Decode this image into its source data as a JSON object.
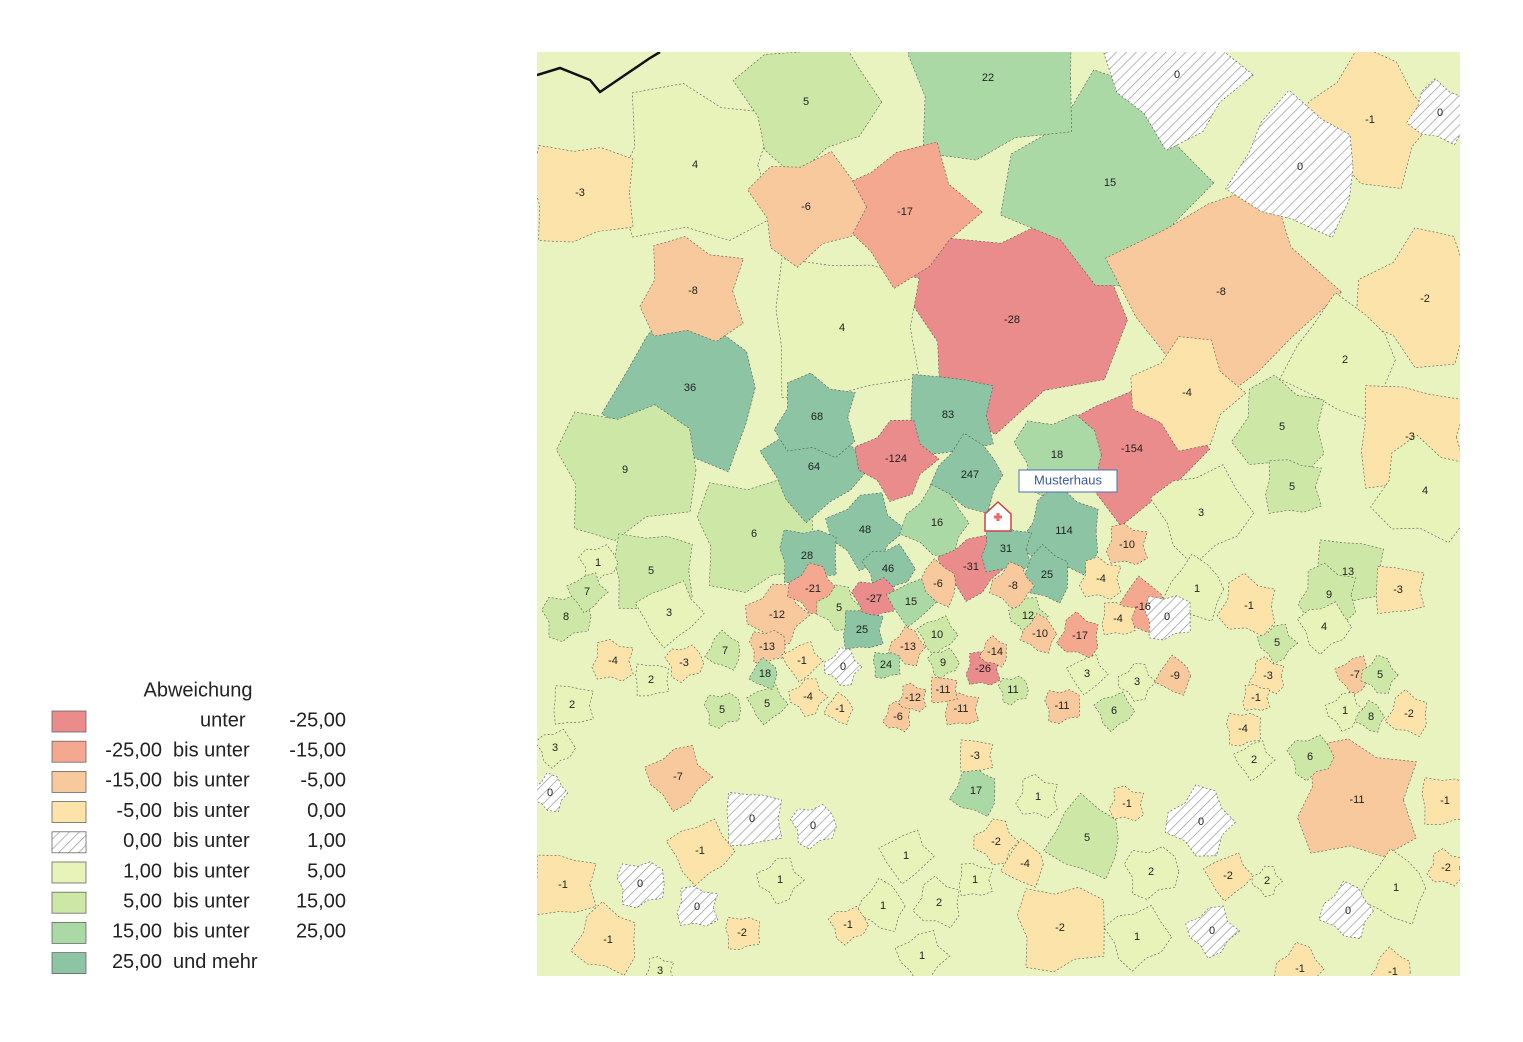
{
  "legend": {
    "title": "Abweichung",
    "items": [
      {
        "color": "#ea8c8c",
        "text": "unter",
        "to": {
          "value": -25,
          "label": "-25,00"
        }
      },
      {
        "color": "#f5a890",
        "from": {
          "value": -25,
          "label": "-25,00"
        },
        "text": "bis unter",
        "to": {
          "value": -15,
          "label": "-15,00"
        }
      },
      {
        "color": "#f8c99c",
        "from": {
          "value": -15,
          "label": "-15,00"
        },
        "text": "bis unter",
        "to": {
          "value": -5,
          "label": "-5,00"
        }
      },
      {
        "color": "#fbe3aa",
        "from": {
          "value": -5,
          "label": "-5,00"
        },
        "text": "bis unter",
        "to": {
          "value": 0,
          "label": "0,00"
        }
      },
      {
        "color": "hatch",
        "from": {
          "value": 0,
          "label": "0,00"
        },
        "text": "bis unter",
        "to": {
          "value": 1,
          "label": "1,00"
        }
      },
      {
        "color": "#e7f3b9",
        "from": {
          "value": 1,
          "label": "1,00"
        },
        "text": "bis unter",
        "to": {
          "value": 5,
          "label": "5,00"
        }
      },
      {
        "color": "#cde8a6",
        "from": {
          "value": 5,
          "label": "5,00"
        },
        "text": "bis unter",
        "to": {
          "value": 15,
          "label": "15,00"
        }
      },
      {
        "color": "#abd9a6",
        "from": {
          "value": 15,
          "label": "15,00"
        },
        "text": "bis unter",
        "to": {
          "value": 25,
          "label": "25,00"
        }
      },
      {
        "color": "#8cc4a4",
        "from": {
          "value": 25,
          "label": "25,00"
        },
        "text": "und mehr"
      }
    ]
  },
  "marker": {
    "label": "Musterhaus"
  },
  "regions": [
    22,
    5,
    0,
    -1,
    0,
    4,
    -3,
    -6,
    -17,
    15,
    0,
    -8,
    4,
    -28,
    -8,
    -2,
    36,
    68,
    83,
    18,
    -154,
    -4,
    2,
    5,
    -3,
    9,
    64,
    -124,
    247,
    4,
    5,
    6,
    3,
    48,
    16,
    114,
    31,
    28,
    46,
    -31,
    -8,
    25,
    -10,
    5,
    1,
    7,
    -21,
    -6,
    -4,
    13,
    -27,
    15,
    5,
    -16,
    9,
    -3,
    8,
    3,
    -12,
    1,
    -1,
    25,
    -13,
    10,
    12,
    -10,
    -17,
    -4,
    0,
    4,
    5,
    -13,
    -14,
    -26,
    24,
    9,
    -7,
    5,
    7,
    -4,
    2,
    -3,
    -1,
    0,
    18,
    -12,
    -11,
    11,
    3,
    3,
    -9,
    -3,
    2,
    5,
    5,
    -4,
    -1,
    -6,
    -11,
    -11,
    6,
    1,
    8,
    -2,
    -1,
    -4,
    3,
    -7,
    0,
    17,
    -11,
    -1,
    6,
    2,
    0,
    5,
    -1,
    0,
    0,
    1,
    -2,
    -4,
    1,
    -3,
    2,
    -2,
    2,
    1,
    -2,
    -1,
    0,
    -1,
    1,
    1,
    2,
    1,
    -2,
    1,
    0,
    0,
    -1,
    0,
    -2,
    -1,
    1,
    -1,
    -1,
    3
  ]
}
